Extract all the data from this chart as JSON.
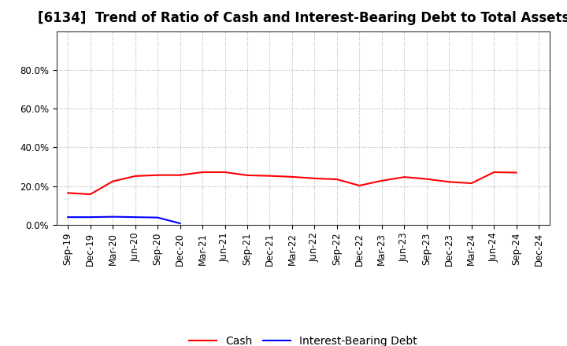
{
  "title": "[6134]  Trend of Ratio of Cash and Interest-Bearing Debt to Total Assets",
  "x_labels": [
    "Sep-19",
    "Dec-19",
    "Mar-20",
    "Jun-20",
    "Sep-20",
    "Dec-20",
    "Mar-21",
    "Jun-21",
    "Sep-21",
    "Dec-21",
    "Mar-22",
    "Jun-22",
    "Sep-22",
    "Dec-22",
    "Mar-23",
    "Jun-23",
    "Sep-23",
    "Dec-23",
    "Mar-24",
    "Jun-24",
    "Sep-24",
    "Dec-24"
  ],
  "cash": [
    0.165,
    0.158,
    0.225,
    0.252,
    0.257,
    0.257,
    0.272,
    0.272,
    0.256,
    0.253,
    0.248,
    0.24,
    0.235,
    0.203,
    0.228,
    0.247,
    0.237,
    0.222,
    0.215,
    0.272,
    0.27,
    null
  ],
  "debt": [
    0.04,
    0.04,
    0.042,
    0.04,
    0.038,
    0.008,
    null,
    null,
    null,
    null,
    null,
    null,
    null,
    null,
    null,
    null,
    null,
    null,
    null,
    null,
    null,
    null
  ],
  "cash_color": "#ff0000",
  "debt_color": "#0000ff",
  "ylim_min": 0.0,
  "ylim_max": 1.0,
  "yticks": [
    0.0,
    0.2,
    0.4,
    0.6,
    0.8
  ],
  "ytick_labels": [
    "0.0%",
    "20.0%",
    "40.0%",
    "60.0%",
    "80.0%"
  ],
  "legend_cash": "Cash",
  "legend_debt": "Interest-Bearing Debt",
  "background_color": "#ffffff",
  "grid_color": "#b0b0b0",
  "title_fontsize": 12,
  "axis_fontsize": 8.5,
  "legend_fontsize": 10
}
